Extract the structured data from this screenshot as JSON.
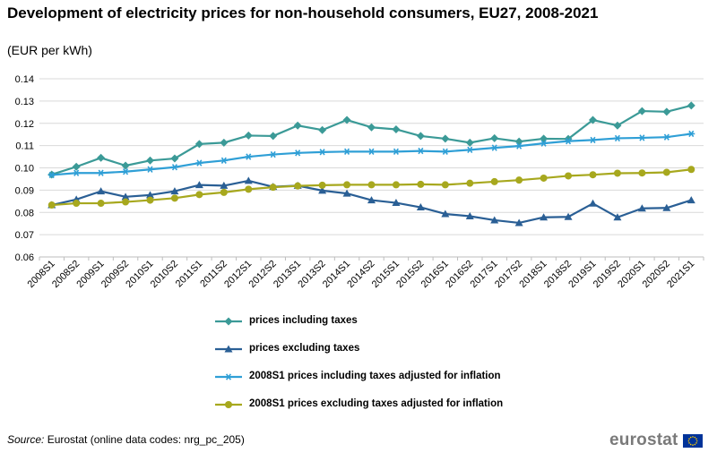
{
  "chart_data": {
    "type": "line",
    "title": "Development of electricity prices for non-household consumers, EU27, 2008-2021",
    "subtitle": "(EUR per kWh)",
    "categories": [
      "2008S1",
      "2008S2",
      "2009S1",
      "2009S2",
      "2010S1",
      "2010S2",
      "2011S1",
      "2011S2",
      "2012S1",
      "2012S2",
      "2013S1",
      "2013S2",
      "2014S1",
      "2014S2",
      "2015S1",
      "2015S2",
      "2016S1",
      "2016S2",
      "2017S1",
      "2017S2",
      "2018S1",
      "2018S2",
      "2019S1",
      "2019S2",
      "2020S1",
      "2020S2",
      "2021S1"
    ],
    "yticks": [
      "0.06",
      "0.07",
      "0.08",
      "0.09",
      "0.10",
      "0.11",
      "0.12",
      "0.13",
      "0.14"
    ],
    "ylim": [
      0.06,
      0.14
    ],
    "grid": true,
    "legend_position": "bottom",
    "series": [
      {
        "name": "prices including taxes",
        "color": "#3b9a97",
        "marker": "diamond",
        "values": [
          0.097,
          0.1005,
          0.1045,
          0.101,
          0.1033,
          0.1042,
          0.1107,
          0.1113,
          0.1145,
          0.1143,
          0.119,
          0.117,
          0.1215,
          0.1182,
          0.1173,
          0.1143,
          0.1131,
          0.1113,
          0.1133,
          0.1118,
          0.1131,
          0.113,
          0.1215,
          0.119,
          0.1255,
          0.1252,
          0.128
        ]
      },
      {
        "name": "prices excluding taxes",
        "color": "#2a5f95",
        "marker": "triangle",
        "values": [
          0.0833,
          0.0858,
          0.0895,
          0.087,
          0.0878,
          0.0895,
          0.0923,
          0.092,
          0.0942,
          0.0915,
          0.092,
          0.0898,
          0.0885,
          0.0855,
          0.0843,
          0.0823,
          0.0793,
          0.0783,
          0.0765,
          0.0753,
          0.0778,
          0.078,
          0.084,
          0.0778,
          0.0818,
          0.082,
          0.0855
        ]
      },
      {
        "name": "2008S1 prices including taxes adjusted for inflation",
        "color": "#2f9fd6",
        "marker": "asterisk",
        "values": [
          0.0968,
          0.0977,
          0.0977,
          0.0983,
          0.0993,
          0.1003,
          0.1022,
          0.1033,
          0.105,
          0.106,
          0.1067,
          0.1071,
          0.1073,
          0.1073,
          0.1073,
          0.1076,
          0.1073,
          0.1081,
          0.109,
          0.1098,
          0.111,
          0.112,
          0.1125,
          0.1133,
          0.1135,
          0.1138,
          0.1153
        ]
      },
      {
        "name": "2008S1 prices excluding taxes adjusted for inflation",
        "color": "#a7a81e",
        "marker": "circle",
        "values": [
          0.0833,
          0.0841,
          0.0841,
          0.0847,
          0.0855,
          0.0864,
          0.088,
          0.089,
          0.0904,
          0.0913,
          0.0919,
          0.0922,
          0.0924,
          0.0924,
          0.0924,
          0.0926,
          0.0924,
          0.0931,
          0.0938,
          0.0945,
          0.0954,
          0.0964,
          0.0969,
          0.0976,
          0.0977,
          0.098,
          0.0993
        ]
      }
    ]
  },
  "source": {
    "prefix": "Source:",
    "text": " Eurostat (online data codes: nrg_pc_205)"
  },
  "logo": {
    "text": "eurostat",
    "flag_color": "#003399",
    "star_color": "#ffcc00"
  }
}
